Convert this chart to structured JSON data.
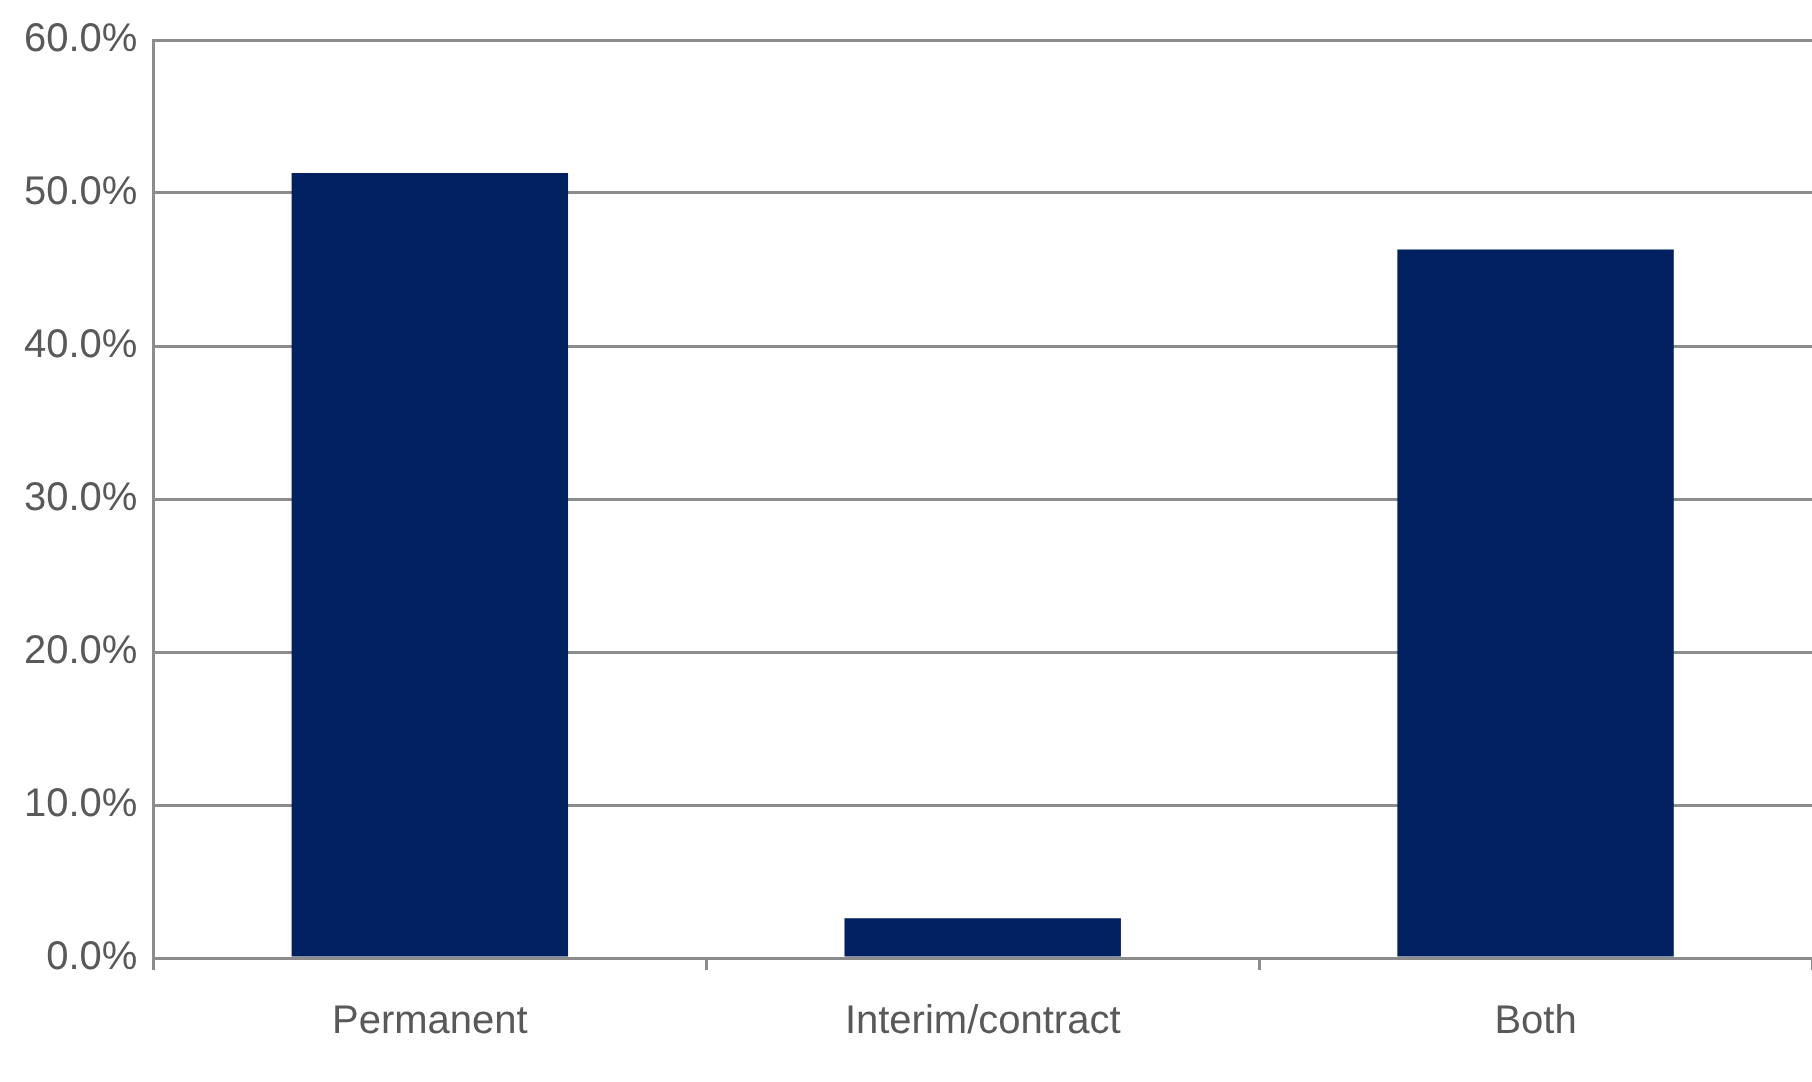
{
  "chart_data": {
    "type": "bar",
    "categories": [
      "Permanent",
      "Interim/contract",
      "Both"
    ],
    "values": [
      51.3,
      2.6,
      46.3
    ],
    "color": "#002060",
    "ylim": [
      0,
      60
    ],
    "yticks": [
      {
        "value": 0,
        "label": "0.0%"
      },
      {
        "value": 10,
        "label": "10.0%"
      },
      {
        "value": 20,
        "label": "20.0%"
      },
      {
        "value": 30,
        "label": "30.0%"
      },
      {
        "value": 40,
        "label": "40.0%"
      },
      {
        "value": 50,
        "label": "50.0%"
      },
      {
        "value": 60,
        "label": "60.0%"
      }
    ],
    "grid": "y",
    "legend": false
  }
}
